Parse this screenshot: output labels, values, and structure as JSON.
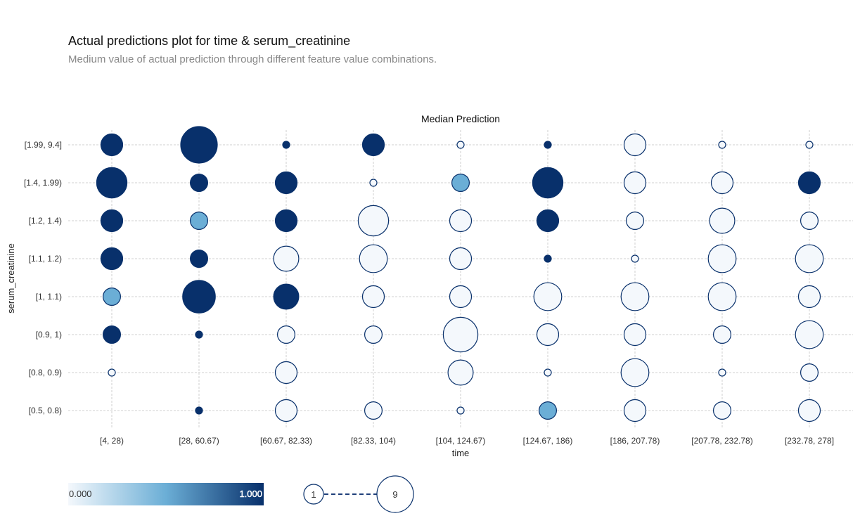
{
  "header": {
    "title": "Actual predictions plot for time & serum_creatinine",
    "subtitle": "Medium value of actual prediction through different feature value combinations."
  },
  "chart_data": {
    "type": "scatter",
    "title": "Median Prediction",
    "xlabel": "time",
    "ylabel": "serum_creatinine",
    "x_categories": [
      "[4, 28)",
      "[28, 60.67)",
      "[60.67, 82.33)",
      "[82.33, 104)",
      "[104, 124.67)",
      "[124.67, 186)",
      "[186, 207.78)",
      "[207.78, 232.78)",
      "[232.78, 278]"
    ],
    "y_categories": [
      "[0.5, 0.8)",
      "[0.8, 0.9)",
      "[0.9, 1)",
      "[1, 1.1)",
      "[1.1, 1.2)",
      "[1.2, 1.4)",
      "[1.4, 1.99)",
      "[1.99, 9.4]"
    ],
    "grid": true,
    "colorscale": {
      "min_label": "0.000",
      "max_label": "1.000",
      "min_color": "#f4f8fc",
      "mid_color": "#6baed6",
      "max_color": "#08306b"
    },
    "size_legend": {
      "min_label": "1",
      "max_label": "9"
    },
    "points": [
      {
        "x": "[4, 28)",
        "y": "[1.99, 9.4]",
        "count": 3,
        "prediction": 1
      },
      {
        "x": "[4, 28)",
        "y": "[1.4, 1.99)",
        "count": 6,
        "prediction": 1
      },
      {
        "x": "[4, 28)",
        "y": "[1.2, 1.4)",
        "count": 3,
        "prediction": 1
      },
      {
        "x": "[4, 28)",
        "y": "[1.1, 1.2)",
        "count": 3,
        "prediction": 1
      },
      {
        "x": "[4, 28)",
        "y": "[1, 1.1)",
        "count": 2,
        "prediction": 0.5
      },
      {
        "x": "[4, 28)",
        "y": "[0.9, 1)",
        "count": 2,
        "prediction": 1
      },
      {
        "x": "[4, 28)",
        "y": "[0.8, 0.9)",
        "count": 1,
        "prediction": 0
      },
      {
        "x": "[28, 60.67)",
        "y": "[1.99, 9.4]",
        "count": 9,
        "prediction": 1
      },
      {
        "x": "[28, 60.67)",
        "y": "[1.4, 1.99)",
        "count": 2,
        "prediction": 1
      },
      {
        "x": "[28, 60.67)",
        "y": "[1.2, 1.4)",
        "count": 2,
        "prediction": 0.5
      },
      {
        "x": "[28, 60.67)",
        "y": "[1.1, 1.2)",
        "count": 2,
        "prediction": 1
      },
      {
        "x": "[28, 60.67)",
        "y": "[1, 1.1)",
        "count": 7,
        "prediction": 1
      },
      {
        "x": "[28, 60.67)",
        "y": "[0.9, 1)",
        "count": 1,
        "prediction": 1
      },
      {
        "x": "[28, 60.67)",
        "y": "[0.5, 0.8)",
        "count": 1,
        "prediction": 1
      },
      {
        "x": "[60.67, 82.33)",
        "y": "[1.99, 9.4]",
        "count": 1,
        "prediction": 1
      },
      {
        "x": "[60.67, 82.33)",
        "y": "[1.4, 1.99)",
        "count": 3,
        "prediction": 1
      },
      {
        "x": "[60.67, 82.33)",
        "y": "[1.2, 1.4)",
        "count": 3,
        "prediction": 1
      },
      {
        "x": "[60.67, 82.33)",
        "y": "[1.1, 1.2)",
        "count": 4,
        "prediction": 0
      },
      {
        "x": "[60.67, 82.33)",
        "y": "[1, 1.1)",
        "count": 4,
        "prediction": 1
      },
      {
        "x": "[60.67, 82.33)",
        "y": "[0.9, 1)",
        "count": 2,
        "prediction": 0
      },
      {
        "x": "[60.67, 82.33)",
        "y": "[0.8, 0.9)",
        "count": 3,
        "prediction": 0
      },
      {
        "x": "[60.67, 82.33)",
        "y": "[0.5, 0.8)",
        "count": 3,
        "prediction": 0
      },
      {
        "x": "[82.33, 104)",
        "y": "[1.99, 9.4]",
        "count": 3,
        "prediction": 1
      },
      {
        "x": "[82.33, 104)",
        "y": "[1.4, 1.99)",
        "count": 1,
        "prediction": 0
      },
      {
        "x": "[82.33, 104)",
        "y": "[1.2, 1.4)",
        "count": 6,
        "prediction": 0
      },
      {
        "x": "[82.33, 104)",
        "y": "[1.1, 1.2)",
        "count": 5,
        "prediction": 0
      },
      {
        "x": "[82.33, 104)",
        "y": "[1, 1.1)",
        "count": 3,
        "prediction": 0
      },
      {
        "x": "[82.33, 104)",
        "y": "[0.9, 1)",
        "count": 2,
        "prediction": 0
      },
      {
        "x": "[82.33, 104)",
        "y": "[0.5, 0.8)",
        "count": 2,
        "prediction": 0
      },
      {
        "x": "[104, 124.67)",
        "y": "[1.99, 9.4]",
        "count": 1,
        "prediction": 0
      },
      {
        "x": "[104, 124.67)",
        "y": "[1.4, 1.99)",
        "count": 2,
        "prediction": 0.5
      },
      {
        "x": "[104, 124.67)",
        "y": "[1.2, 1.4)",
        "count": 3,
        "prediction": 0
      },
      {
        "x": "[104, 124.67)",
        "y": "[1.1, 1.2)",
        "count": 3,
        "prediction": 0
      },
      {
        "x": "[104, 124.67)",
        "y": "[1, 1.1)",
        "count": 3,
        "prediction": 0
      },
      {
        "x": "[104, 124.67)",
        "y": "[0.9, 1)",
        "count": 8,
        "prediction": 0
      },
      {
        "x": "[104, 124.67)",
        "y": "[0.8, 0.9)",
        "count": 4,
        "prediction": 0
      },
      {
        "x": "[104, 124.67)",
        "y": "[0.5, 0.8)",
        "count": 1,
        "prediction": 0
      },
      {
        "x": "[124.67, 186)",
        "y": "[1.99, 9.4]",
        "count": 1,
        "prediction": 1
      },
      {
        "x": "[124.67, 186)",
        "y": "[1.4, 1.99)",
        "count": 6,
        "prediction": 1
      },
      {
        "x": "[124.67, 186)",
        "y": "[1.2, 1.4)",
        "count": 3,
        "prediction": 1
      },
      {
        "x": "[124.67, 186)",
        "y": "[1.1, 1.2)",
        "count": 1,
        "prediction": 1
      },
      {
        "x": "[124.67, 186)",
        "y": "[1, 1.1)",
        "count": 5,
        "prediction": 0
      },
      {
        "x": "[124.67, 186)",
        "y": "[0.9, 1)",
        "count": 3,
        "prediction": 0
      },
      {
        "x": "[124.67, 186)",
        "y": "[0.8, 0.9)",
        "count": 1,
        "prediction": 0
      },
      {
        "x": "[124.67, 186)",
        "y": "[0.5, 0.8)",
        "count": 2,
        "prediction": 0.5
      },
      {
        "x": "[186, 207.78)",
        "y": "[1.99, 9.4]",
        "count": 3,
        "prediction": 0
      },
      {
        "x": "[186, 207.78)",
        "y": "[1.4, 1.99)",
        "count": 3,
        "prediction": 0
      },
      {
        "x": "[186, 207.78)",
        "y": "[1.2, 1.4)",
        "count": 2,
        "prediction": 0
      },
      {
        "x": "[186, 207.78)",
        "y": "[1.1, 1.2)",
        "count": 1,
        "prediction": 0
      },
      {
        "x": "[186, 207.78)",
        "y": "[1, 1.1)",
        "count": 5,
        "prediction": 0
      },
      {
        "x": "[186, 207.78)",
        "y": "[0.9, 1)",
        "count": 3,
        "prediction": 0
      },
      {
        "x": "[186, 207.78)",
        "y": "[0.8, 0.9)",
        "count": 5,
        "prediction": 0
      },
      {
        "x": "[186, 207.78)",
        "y": "[0.5, 0.8)",
        "count": 3,
        "prediction": 0
      },
      {
        "x": "[207.78, 232.78)",
        "y": "[1.99, 9.4]",
        "count": 1,
        "prediction": 0
      },
      {
        "x": "[207.78, 232.78)",
        "y": "[1.4, 1.99)",
        "count": 3,
        "prediction": 0
      },
      {
        "x": "[207.78, 232.78)",
        "y": "[1.2, 1.4)",
        "count": 4,
        "prediction": 0
      },
      {
        "x": "[207.78, 232.78)",
        "y": "[1.1, 1.2)",
        "count": 5,
        "prediction": 0
      },
      {
        "x": "[207.78, 232.78)",
        "y": "[1, 1.1)",
        "count": 5,
        "prediction": 0
      },
      {
        "x": "[207.78, 232.78)",
        "y": "[0.9, 1)",
        "count": 2,
        "prediction": 0
      },
      {
        "x": "[207.78, 232.78)",
        "y": "[0.8, 0.9)",
        "count": 1,
        "prediction": 0
      },
      {
        "x": "[207.78, 232.78)",
        "y": "[0.5, 0.8)",
        "count": 2,
        "prediction": 0
      },
      {
        "x": "[232.78, 278]",
        "y": "[1.99, 9.4]",
        "count": 1,
        "prediction": 0
      },
      {
        "x": "[232.78, 278]",
        "y": "[1.4, 1.99)",
        "count": 3,
        "prediction": 1
      },
      {
        "x": "[232.78, 278]",
        "y": "[1.2, 1.4)",
        "count": 2,
        "prediction": 0
      },
      {
        "x": "[232.78, 278]",
        "y": "[1.1, 1.2)",
        "count": 5,
        "prediction": 0
      },
      {
        "x": "[232.78, 278]",
        "y": "[1, 1.1)",
        "count": 3,
        "prediction": 0
      },
      {
        "x": "[232.78, 278]",
        "y": "[0.9, 1)",
        "count": 5,
        "prediction": 0
      },
      {
        "x": "[232.78, 278]",
        "y": "[0.8, 0.9)",
        "count": 2,
        "prediction": 0
      },
      {
        "x": "[232.78, 278]",
        "y": "[0.5, 0.8)",
        "count": 3,
        "prediction": 0
      }
    ]
  }
}
